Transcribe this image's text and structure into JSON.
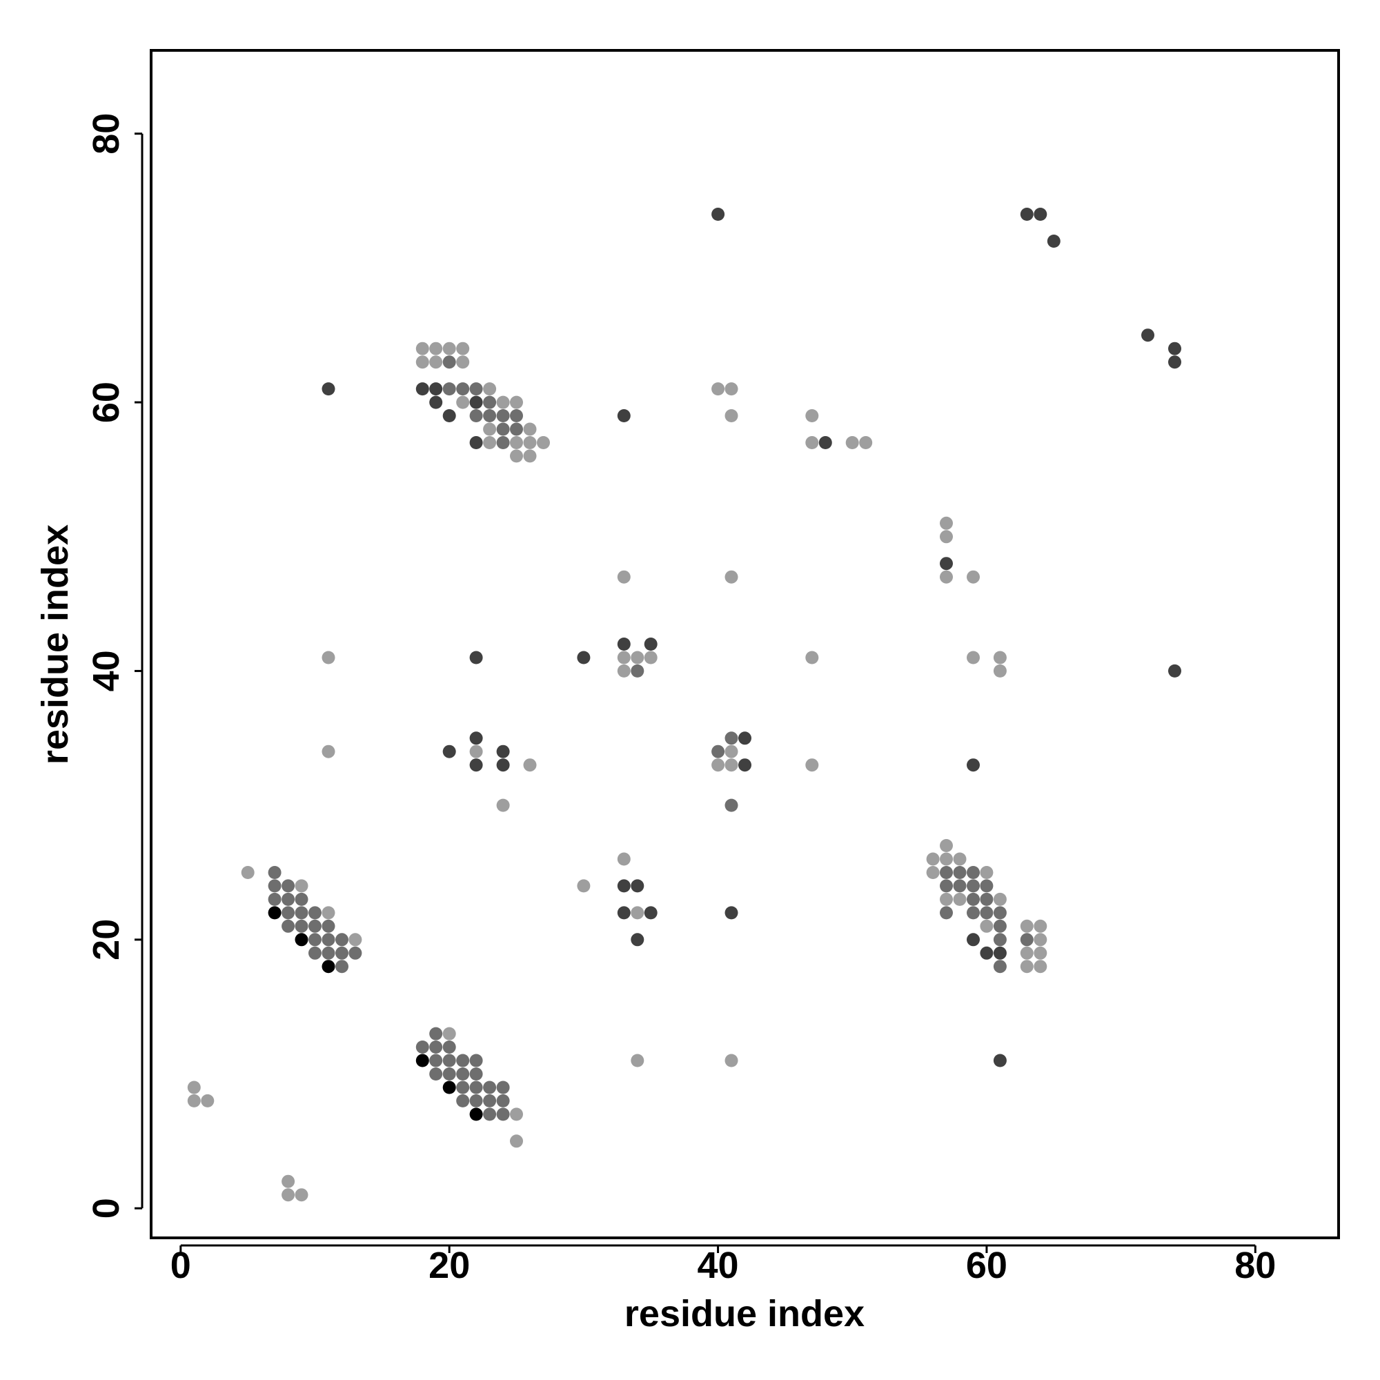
{
  "chart_data": {
    "type": "scatter",
    "title": "",
    "xlabel": "residue index",
    "ylabel": "residue index",
    "xlim": [
      -2.2,
      86.2
    ],
    "ylim": [
      -2.2,
      86.2
    ],
    "x_ticks": [
      0,
      20,
      40,
      60,
      80
    ],
    "y_ticks": [
      0,
      20,
      40,
      60,
      80
    ],
    "x_tick_labels": [
      "0",
      "20",
      "40",
      "60",
      "80"
    ],
    "y_tick_labels": [
      "0",
      "20",
      "40",
      "60",
      "80"
    ],
    "grid": false,
    "legend": "none",
    "colors": {
      "black": "#000000",
      "dark": "#404040",
      "mid": "#6e6e6e",
      "light": "#9e9e9e"
    },
    "points": [
      [
        1,
        9,
        "light"
      ],
      [
        1,
        8,
        "light"
      ],
      [
        2,
        8,
        "light"
      ],
      [
        8,
        2,
        "light"
      ],
      [
        8,
        1,
        "light"
      ],
      [
        9,
        1,
        "light"
      ],
      [
        5,
        25,
        "light"
      ],
      [
        7,
        25,
        "mid"
      ],
      [
        7,
        24,
        "mid"
      ],
      [
        7,
        23,
        "mid"
      ],
      [
        7,
        22,
        "black"
      ],
      [
        8,
        24,
        "mid"
      ],
      [
        8,
        23,
        "mid"
      ],
      [
        8,
        22,
        "mid"
      ],
      [
        8,
        21,
        "mid"
      ],
      [
        9,
        24,
        "light"
      ],
      [
        9,
        23,
        "mid"
      ],
      [
        9,
        22,
        "mid"
      ],
      [
        9,
        21,
        "mid"
      ],
      [
        9,
        20,
        "black"
      ],
      [
        10,
        22,
        "mid"
      ],
      [
        10,
        21,
        "mid"
      ],
      [
        10,
        20,
        "mid"
      ],
      [
        10,
        19,
        "mid"
      ],
      [
        11,
        22,
        "light"
      ],
      [
        11,
        21,
        "mid"
      ],
      [
        11,
        20,
        "mid"
      ],
      [
        11,
        19,
        "mid"
      ],
      [
        11,
        18,
        "black"
      ],
      [
        12,
        20,
        "mid"
      ],
      [
        12,
        19,
        "mid"
      ],
      [
        12,
        18,
        "mid"
      ],
      [
        13,
        20,
        "light"
      ],
      [
        13,
        19,
        "mid"
      ],
      [
        11,
        61,
        "dark"
      ],
      [
        11,
        41,
        "light"
      ],
      [
        11,
        34,
        "light"
      ],
      [
        18,
        12,
        "mid"
      ],
      [
        18,
        11,
        "black"
      ],
      [
        19,
        13,
        "mid"
      ],
      [
        19,
        12,
        "mid"
      ],
      [
        19,
        11,
        "mid"
      ],
      [
        19,
        10,
        "mid"
      ],
      [
        20,
        13,
        "light"
      ],
      [
        20,
        12,
        "mid"
      ],
      [
        20,
        11,
        "mid"
      ],
      [
        20,
        10,
        "mid"
      ],
      [
        20,
        9,
        "black"
      ],
      [
        21,
        11,
        "mid"
      ],
      [
        21,
        10,
        "mid"
      ],
      [
        21,
        9,
        "mid"
      ],
      [
        21,
        8,
        "mid"
      ],
      [
        22,
        11,
        "mid"
      ],
      [
        22,
        10,
        "mid"
      ],
      [
        22,
        9,
        "mid"
      ],
      [
        22,
        8,
        "mid"
      ],
      [
        22,
        7,
        "black"
      ],
      [
        23,
        9,
        "mid"
      ],
      [
        23,
        8,
        "mid"
      ],
      [
        23,
        7,
        "mid"
      ],
      [
        24,
        9,
        "mid"
      ],
      [
        24,
        8,
        "mid"
      ],
      [
        24,
        7,
        "mid"
      ],
      [
        25,
        7,
        "light"
      ],
      [
        25,
        5,
        "light"
      ],
      [
        18,
        64,
        "light"
      ],
      [
        18,
        63,
        "light"
      ],
      [
        18,
        61,
        "dark"
      ],
      [
        19,
        64,
        "light"
      ],
      [
        19,
        63,
        "light"
      ],
      [
        19,
        61,
        "dark"
      ],
      [
        19,
        60,
        "dark"
      ],
      [
        20,
        64,
        "light"
      ],
      [
        20,
        63,
        "mid"
      ],
      [
        20,
        61,
        "mid"
      ],
      [
        20,
        59,
        "dark"
      ],
      [
        21,
        64,
        "light"
      ],
      [
        21,
        63,
        "light"
      ],
      [
        21,
        61,
        "mid"
      ],
      [
        21,
        60,
        "light"
      ],
      [
        22,
        61,
        "mid"
      ],
      [
        22,
        60,
        "dark"
      ],
      [
        22,
        59,
        "mid"
      ],
      [
        22,
        57,
        "dark"
      ],
      [
        23,
        61,
        "light"
      ],
      [
        23,
        60,
        "mid"
      ],
      [
        23,
        59,
        "mid"
      ],
      [
        23,
        58,
        "light"
      ],
      [
        23,
        57,
        "light"
      ],
      [
        24,
        60,
        "light"
      ],
      [
        24,
        59,
        "mid"
      ],
      [
        24,
        58,
        "mid"
      ],
      [
        24,
        57,
        "mid"
      ],
      [
        25,
        60,
        "light"
      ],
      [
        25,
        59,
        "mid"
      ],
      [
        25,
        58,
        "mid"
      ],
      [
        25,
        57,
        "light"
      ],
      [
        25,
        56,
        "light"
      ],
      [
        26,
        58,
        "light"
      ],
      [
        26,
        57,
        "light"
      ],
      [
        26,
        56,
        "light"
      ],
      [
        27,
        57,
        "light"
      ],
      [
        22,
        41,
        "dark"
      ],
      [
        20,
        34,
        "dark"
      ],
      [
        22,
        35,
        "dark"
      ],
      [
        22,
        34,
        "light"
      ],
      [
        22,
        33,
        "dark"
      ],
      [
        24,
        34,
        "dark"
      ],
      [
        24,
        33,
        "dark"
      ],
      [
        24,
        30,
        "light"
      ],
      [
        26,
        33,
        "light"
      ],
      [
        30,
        41,
        "dark"
      ],
      [
        30,
        24,
        "light"
      ],
      [
        33,
        59,
        "dark"
      ],
      [
        33,
        47,
        "light"
      ],
      [
        33,
        42,
        "dark"
      ],
      [
        33,
        41,
        "light"
      ],
      [
        33,
        40,
        "light"
      ],
      [
        34,
        41,
        "light"
      ],
      [
        34,
        40,
        "mid"
      ],
      [
        35,
        42,
        "dark"
      ],
      [
        35,
        41,
        "light"
      ],
      [
        33,
        26,
        "light"
      ],
      [
        33,
        24,
        "dark"
      ],
      [
        34,
        24,
        "dark"
      ],
      [
        33,
        22,
        "dark"
      ],
      [
        34,
        22,
        "light"
      ],
      [
        35,
        22,
        "dark"
      ],
      [
        34,
        20,
        "dark"
      ],
      [
        34,
        11,
        "light"
      ],
      [
        40,
        74,
        "dark"
      ],
      [
        40,
        61,
        "light"
      ],
      [
        41,
        61,
        "light"
      ],
      [
        41,
        59,
        "light"
      ],
      [
        41,
        47,
        "light"
      ],
      [
        40,
        34,
        "mid"
      ],
      [
        40,
        33,
        "light"
      ],
      [
        41,
        35,
        "mid"
      ],
      [
        41,
        34,
        "light"
      ],
      [
        41,
        33,
        "light"
      ],
      [
        42,
        35,
        "dark"
      ],
      [
        42,
        33,
        "dark"
      ],
      [
        41,
        30,
        "mid"
      ],
      [
        41,
        22,
        "dark"
      ],
      [
        41,
        11,
        "light"
      ],
      [
        47,
        59,
        "light"
      ],
      [
        47,
        57,
        "light"
      ],
      [
        48,
        57,
        "dark"
      ],
      [
        50,
        57,
        "light"
      ],
      [
        51,
        57,
        "light"
      ],
      [
        47,
        41,
        "light"
      ],
      [
        47,
        33,
        "light"
      ],
      [
        57,
        51,
        "light"
      ],
      [
        57,
        50,
        "light"
      ],
      [
        57,
        48,
        "dark"
      ],
      [
        57,
        47,
        "light"
      ],
      [
        59,
        47,
        "light"
      ],
      [
        59,
        41,
        "light"
      ],
      [
        61,
        41,
        "light"
      ],
      [
        61,
        40,
        "light"
      ],
      [
        59,
        33,
        "dark"
      ],
      [
        56,
        26,
        "light"
      ],
      [
        56,
        25,
        "light"
      ],
      [
        57,
        27,
        "light"
      ],
      [
        57,
        26,
        "light"
      ],
      [
        57,
        25,
        "mid"
      ],
      [
        57,
        24,
        "mid"
      ],
      [
        57,
        23,
        "light"
      ],
      [
        57,
        22,
        "mid"
      ],
      [
        58,
        26,
        "light"
      ],
      [
        58,
        25,
        "mid"
      ],
      [
        58,
        24,
        "mid"
      ],
      [
        58,
        23,
        "light"
      ],
      [
        59,
        25,
        "mid"
      ],
      [
        59,
        24,
        "mid"
      ],
      [
        59,
        23,
        "mid"
      ],
      [
        59,
        22,
        "mid"
      ],
      [
        59,
        20,
        "dark"
      ],
      [
        60,
        25,
        "light"
      ],
      [
        60,
        24,
        "mid"
      ],
      [
        60,
        23,
        "mid"
      ],
      [
        60,
        22,
        "mid"
      ],
      [
        60,
        21,
        "light"
      ],
      [
        60,
        19,
        "dark"
      ],
      [
        61,
        23,
        "light"
      ],
      [
        61,
        22,
        "mid"
      ],
      [
        61,
        21,
        "mid"
      ],
      [
        61,
        20,
        "mid"
      ],
      [
        61,
        19,
        "dark"
      ],
      [
        61,
        18,
        "mid"
      ],
      [
        63,
        21,
        "light"
      ],
      [
        63,
        20,
        "mid"
      ],
      [
        63,
        19,
        "light"
      ],
      [
        63,
        18,
        "light"
      ],
      [
        64,
        21,
        "light"
      ],
      [
        64,
        20,
        "light"
      ],
      [
        64,
        19,
        "light"
      ],
      [
        64,
        18,
        "light"
      ],
      [
        61,
        11,
        "dark"
      ],
      [
        63,
        74,
        "dark"
      ],
      [
        64,
        74,
        "dark"
      ],
      [
        65,
        72,
        "dark"
      ],
      [
        72,
        65,
        "dark"
      ],
      [
        74,
        64,
        "dark"
      ],
      [
        74,
        63,
        "dark"
      ],
      [
        74,
        40,
        "dark"
      ]
    ]
  }
}
